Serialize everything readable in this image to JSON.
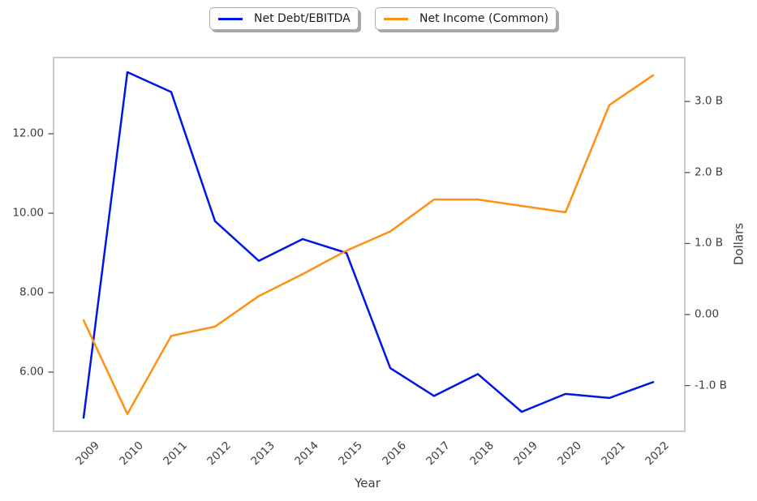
{
  "chart_data": {
    "type": "line",
    "title": "",
    "x_label": "Year",
    "categories": [
      "2009",
      "2010",
      "2011",
      "2012",
      "2013",
      "2014",
      "2015",
      "2016",
      "2017",
      "2018",
      "2019",
      "2020",
      "2021",
      "2022"
    ],
    "series": [
      {
        "name": "Net Debt/EBITDA",
        "axis": "left",
        "color": "#0016e6",
        "values": [
          4.85,
          13.55,
          13.05,
          9.8,
          8.8,
          9.35,
          9.0,
          6.1,
          5.4,
          5.95,
          5.0,
          5.45,
          5.35,
          5.75
        ]
      },
      {
        "name": "Net Income (Common)",
        "axis": "right",
        "color": "#ff9012",
        "values": [
          -0.08,
          -1.4,
          -0.3,
          -0.17,
          0.26,
          0.57,
          0.9,
          1.17,
          1.62,
          1.62,
          1.53,
          1.44,
          2.95,
          3.37
        ]
      }
    ],
    "left_axis": {
      "tick_labels": [
        "6.00",
        "8.00",
        "10.00",
        "12.00"
      ],
      "tick_values": [
        6,
        8,
        10,
        12
      ],
      "range": [
        4.45,
        14.0
      ]
    },
    "right_axis": {
      "label": "Dollars",
      "tick_labels": [
        "-1.0 B",
        "0.00",
        "1.0 B",
        "2.0 B",
        "3.0 B"
      ],
      "tick_values": [
        -1,
        0,
        1,
        2,
        3
      ],
      "range": [
        -1.63,
        3.62
      ]
    },
    "legend_position": "top-center",
    "grid": false
  },
  "legend": {
    "items": [
      {
        "label": "Net Debt/EBITDA",
        "color": "#0016e6"
      },
      {
        "label": "Net Income (Common)",
        "color": "#ff9012"
      }
    ]
  }
}
